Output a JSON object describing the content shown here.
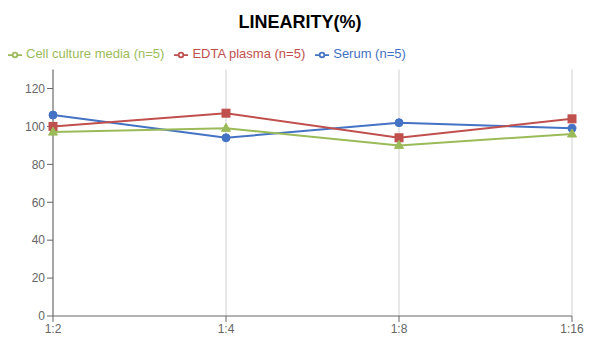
{
  "chart_data": {
    "type": "line",
    "title": "LINEARITY(%)",
    "categories": [
      "1:2",
      "1:4",
      "1:8",
      "1:16"
    ],
    "series": [
      {
        "name": "Serum (n=5)",
        "color": "#4472C4",
        "marker": "circle",
        "values": [
          106,
          94,
          102,
          99
        ]
      },
      {
        "name": "EDTA plasma (n=5)",
        "color": "#C0504D",
        "marker": "square",
        "values": [
          100,
          107,
          94,
          104
        ]
      },
      {
        "name": "Cell culture media (n=5)",
        "color": "#9BBB59",
        "marker": "triangle",
        "values": [
          97,
          99,
          90,
          96
        ]
      }
    ],
    "ylim": [
      0,
      130
    ],
    "yticks": [
      0,
      20,
      40,
      60,
      80,
      100,
      120
    ],
    "grid": true,
    "legend": "top"
  }
}
